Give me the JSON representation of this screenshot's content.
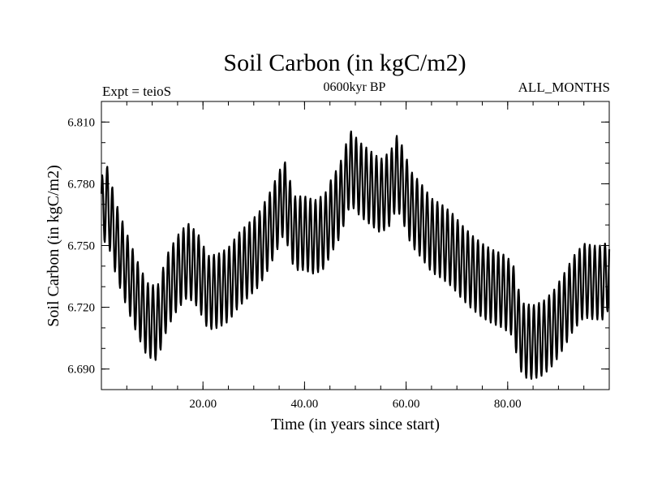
{
  "chart_data": {
    "type": "line",
    "title": "Soil Carbon (in kgC/m2)",
    "subtitle": "0600kyr BP",
    "left_label": "Expt = teioS",
    "right_label": "ALL_MONTHS",
    "xlabel": "Time (in years since start)",
    "ylabel": "Soil Carbon (in kgC/m2)",
    "xlim": [
      0,
      100
    ],
    "ylim": [
      6.68,
      6.82
    ],
    "x_ticks": [
      20,
      40,
      60,
      80
    ],
    "x_tick_labels": [
      "20.00",
      "40.00",
      "60.00",
      "80.00"
    ],
    "y_ticks": [
      6.69,
      6.72,
      6.75,
      6.78,
      6.81
    ],
    "y_tick_labels": [
      "6.690",
      "6.720",
      "6.750",
      "6.780",
      "6.810"
    ],
    "x_minor_step": 5,
    "y_minor_step": 0.01,
    "samples_per_year": 12,
    "seasonal_amplitude": 0.018,
    "series": [
      {
        "name": "Soil Carbon",
        "color": "#000000",
        "envelope_years": [
          0,
          1,
          3,
          5,
          7,
          9,
          11,
          13,
          15,
          17,
          19,
          21,
          23,
          25,
          27,
          29,
          31,
          33,
          35,
          36,
          37,
          38,
          40,
          42,
          44,
          45,
          47,
          49,
          51,
          53,
          55,
          57,
          58,
          59,
          61,
          63,
          65,
          67,
          69,
          71,
          73,
          75,
          77,
          79,
          81,
          82,
          83,
          85,
          87,
          89,
          91,
          93,
          95,
          97,
          99,
          100
        ],
        "envelope_mean": [
          6.765,
          6.772,
          6.752,
          6.738,
          6.725,
          6.714,
          6.712,
          6.728,
          6.737,
          6.743,
          6.738,
          6.727,
          6.728,
          6.731,
          6.738,
          6.743,
          6.748,
          6.757,
          6.768,
          6.774,
          6.765,
          6.756,
          6.756,
          6.754,
          6.757,
          6.763,
          6.772,
          6.788,
          6.782,
          6.778,
          6.774,
          6.778,
          6.786,
          6.782,
          6.768,
          6.762,
          6.755,
          6.752,
          6.748,
          6.742,
          6.737,
          6.733,
          6.73,
          6.728,
          6.724,
          6.712,
          6.704,
          6.703,
          6.705,
          6.71,
          6.718,
          6.727,
          6.733,
          6.732,
          6.732,
          6.738
        ]
      }
    ]
  }
}
